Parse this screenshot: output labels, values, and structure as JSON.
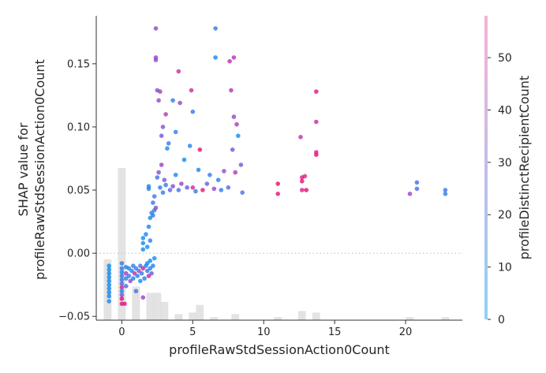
{
  "chart_data": {
    "type": "scatter",
    "xlabel": "profileRawStdSessionAction0Count",
    "ylabel_lines": [
      "SHAP value for",
      "profileRawStdSessionAction0Count"
    ],
    "colorbar_label": "profileDistinctRecipientCount",
    "xlim": [
      -1.8,
      24.0
    ],
    "ylim": [
      -0.053,
      0.188
    ],
    "x_ticks": [
      0,
      5,
      10,
      15,
      20
    ],
    "x_tick_labels": [
      "0",
      "5",
      "10",
      "15",
      "20"
    ],
    "y_ticks": [
      -0.05,
      0.0,
      0.05,
      0.1,
      0.15
    ],
    "y_tick_labels": [
      "−0.05",
      "0.00",
      "0.05",
      "0.10",
      "0.15"
    ],
    "zero_line": true,
    "colorbar": {
      "range": [
        0,
        58
      ],
      "ticks": [
        0,
        10,
        20,
        30,
        40,
        50
      ],
      "tick_labels": [
        "0",
        "10",
        "20",
        "30",
        "40",
        "50"
      ],
      "colors": [
        "#8fd3f4",
        "#c4bde8",
        "#f6b2d6"
      ]
    },
    "histogram": {
      "bins": [
        -1,
        0,
        1,
        2,
        2.5,
        3,
        4,
        5,
        5.5,
        6.5,
        8,
        11,
        12.7,
        13.7,
        20.3,
        22.8
      ],
      "heights": [
        0.4,
        1.0,
        0.22,
        0.18,
        0.18,
        0.12,
        0.04,
        0.05,
        0.1,
        0.02,
        0.04,
        0.02,
        0.06,
        0.05,
        0.02,
        0.02
      ]
    },
    "points": [
      {
        "x": -0.9,
        "y": -0.01,
        "c": 2
      },
      {
        "x": -0.9,
        "y": -0.013,
        "c": 1
      },
      {
        "x": -0.9,
        "y": -0.016,
        "c": 3
      },
      {
        "x": -0.9,
        "y": -0.019,
        "c": 2
      },
      {
        "x": -0.9,
        "y": -0.022,
        "c": 4
      },
      {
        "x": -0.9,
        "y": -0.025,
        "c": 1
      },
      {
        "x": -0.9,
        "y": -0.028,
        "c": 2
      },
      {
        "x": -0.9,
        "y": -0.031,
        "c": 3
      },
      {
        "x": -0.9,
        "y": -0.034,
        "c": 2
      },
      {
        "x": -0.9,
        "y": -0.038,
        "c": 5
      },
      {
        "x": 0.0,
        "y": -0.008,
        "c": 10
      },
      {
        "x": 0.0,
        "y": -0.012,
        "c": 12
      },
      {
        "x": 0.0,
        "y": -0.015,
        "c": 5
      },
      {
        "x": 0.0,
        "y": -0.018,
        "c": 14
      },
      {
        "x": 0.0,
        "y": -0.021,
        "c": 8
      },
      {
        "x": 0.0,
        "y": -0.024,
        "c": 18
      },
      {
        "x": 0.0,
        "y": -0.027,
        "c": 45
      },
      {
        "x": 0.0,
        "y": -0.03,
        "c": 3
      },
      {
        "x": 0.0,
        "y": -0.033,
        "c": 22
      },
      {
        "x": 0.0,
        "y": -0.036,
        "c": 55
      },
      {
        "x": 0.0,
        "y": -0.04,
        "c": 50
      },
      {
        "x": 0.2,
        "y": -0.04,
        "c": 48
      },
      {
        "x": 0.3,
        "y": -0.011,
        "c": 7
      },
      {
        "x": 0.3,
        "y": -0.016,
        "c": 30
      },
      {
        "x": 0.3,
        "y": -0.02,
        "c": 9
      },
      {
        "x": 0.3,
        "y": -0.026,
        "c": 15
      },
      {
        "x": 0.5,
        "y": -0.012,
        "c": 6
      },
      {
        "x": 0.5,
        "y": -0.018,
        "c": 12
      },
      {
        "x": 0.6,
        "y": -0.022,
        "c": 28
      },
      {
        "x": 0.7,
        "y": -0.014,
        "c": 4
      },
      {
        "x": 0.8,
        "y": -0.01,
        "c": 10
      },
      {
        "x": 0.8,
        "y": -0.02,
        "c": 6
      },
      {
        "x": 0.9,
        "y": -0.016,
        "c": 42
      },
      {
        "x": 1.0,
        "y": -0.012,
        "c": 8
      },
      {
        "x": 1.0,
        "y": -0.03,
        "c": 16
      },
      {
        "x": 1.1,
        "y": -0.018,
        "c": 5
      },
      {
        "x": 1.2,
        "y": -0.014,
        "c": 26
      },
      {
        "x": 1.3,
        "y": -0.01,
        "c": 9
      },
      {
        "x": 1.3,
        "y": -0.022,
        "c": 3
      },
      {
        "x": 1.4,
        "y": -0.016,
        "c": 12
      },
      {
        "x": 1.5,
        "y": -0.012,
        "c": 50
      },
      {
        "x": 1.5,
        "y": -0.035,
        "c": 30
      },
      {
        "x": 1.6,
        "y": -0.02,
        "c": 7
      },
      {
        "x": 1.7,
        "y": -0.01,
        "c": 4
      },
      {
        "x": 1.8,
        "y": -0.014,
        "c": 11
      },
      {
        "x": 1.8,
        "y": -0.008,
        "c": 2
      },
      {
        "x": 1.9,
        "y": -0.018,
        "c": 44
      },
      {
        "x": 2.0,
        "y": -0.012,
        "c": 6
      },
      {
        "x": 2.0,
        "y": -0.006,
        "c": 1
      },
      {
        "x": 2.1,
        "y": -0.016,
        "c": 20
      },
      {
        "x": 2.2,
        "y": -0.01,
        "c": 9
      },
      {
        "x": 2.3,
        "y": -0.004,
        "c": 3
      },
      {
        "x": 1.5,
        "y": 0.003,
        "c": 2
      },
      {
        "x": 1.5,
        "y": 0.008,
        "c": 3
      },
      {
        "x": 1.5,
        "y": 0.012,
        "c": 1
      },
      {
        "x": 1.7,
        "y": 0.015,
        "c": 4
      },
      {
        "x": 1.8,
        "y": 0.005,
        "c": 2
      },
      {
        "x": 1.9,
        "y": 0.021,
        "c": 5
      },
      {
        "x": 2.0,
        "y": 0.01,
        "c": 8
      },
      {
        "x": 2.0,
        "y": 0.028,
        "c": 6
      },
      {
        "x": 2.1,
        "y": 0.032,
        "c": 3
      },
      {
        "x": 2.2,
        "y": 0.04,
        "c": 9
      },
      {
        "x": 2.2,
        "y": 0.03,
        "c": 12
      },
      {
        "x": 2.3,
        "y": 0.034,
        "c": 10
      },
      {
        "x": 2.3,
        "y": 0.045,
        "c": 14
      },
      {
        "x": 2.4,
        "y": 0.036,
        "c": 28
      },
      {
        "x": 1.9,
        "y": 0.053,
        "c": 4
      },
      {
        "x": 1.9,
        "y": 0.051,
        "c": 6
      },
      {
        "x": 2.5,
        "y": 0.06,
        "c": 15
      },
      {
        "x": 2.6,
        "y": 0.064,
        "c": 25
      },
      {
        "x": 2.7,
        "y": 0.052,
        "c": 10
      },
      {
        "x": 2.8,
        "y": 0.07,
        "c": 30
      },
      {
        "x": 2.9,
        "y": 0.048,
        "c": 8
      },
      {
        "x": 3.0,
        "y": 0.058,
        "c": 22
      },
      {
        "x": 3.1,
        "y": 0.054,
        "c": 12
      },
      {
        "x": 3.2,
        "y": 0.083,
        "c": 3
      },
      {
        "x": 3.4,
        "y": 0.05,
        "c": 18
      },
      {
        "x": 3.6,
        "y": 0.053,
        "c": 26
      },
      {
        "x": 3.8,
        "y": 0.062,
        "c": 4
      },
      {
        "x": 4.0,
        "y": 0.05,
        "c": 14
      },
      {
        "x": 4.2,
        "y": 0.055,
        "c": 32
      },
      {
        "x": 4.4,
        "y": 0.074,
        "c": 2
      },
      {
        "x": 4.6,
        "y": 0.052,
        "c": 20
      },
      {
        "x": 4.8,
        "y": 0.085,
        "c": 7
      },
      {
        "x": 5.0,
        "y": 0.052,
        "c": 40
      },
      {
        "x": 5.2,
        "y": 0.049,
        "c": 12
      },
      {
        "x": 5.4,
        "y": 0.066,
        "c": 6
      },
      {
        "x": 5.5,
        "y": 0.082,
        "c": 54
      },
      {
        "x": 5.7,
        "y": 0.05,
        "c": 50
      },
      {
        "x": 6.0,
        "y": 0.055,
        "c": 18
      },
      {
        "x": 6.2,
        "y": 0.062,
        "c": 9
      },
      {
        "x": 6.5,
        "y": 0.051,
        "c": 28
      },
      {
        "x": 6.8,
        "y": 0.058,
        "c": 4
      },
      {
        "x": 7.0,
        "y": 0.05,
        "c": 10
      },
      {
        "x": 7.2,
        "y": 0.065,
        "c": 26
      },
      {
        "x": 7.5,
        "y": 0.052,
        "c": 15
      },
      {
        "x": 7.8,
        "y": 0.082,
        "c": 22
      },
      {
        "x": 8.0,
        "y": 0.064,
        "c": 35
      },
      {
        "x": 8.2,
        "y": 0.093,
        "c": 2
      },
      {
        "x": 8.4,
        "y": 0.07,
        "c": 20
      },
      {
        "x": 8.5,
        "y": 0.048,
        "c": 14
      },
      {
        "x": 2.4,
        "y": 0.178,
        "c": 28
      },
      {
        "x": 2.4,
        "y": 0.155,
        "c": 30
      },
      {
        "x": 2.4,
        "y": 0.153,
        "c": 26
      },
      {
        "x": 2.5,
        "y": 0.129,
        "c": 25
      },
      {
        "x": 2.6,
        "y": 0.121,
        "c": 30
      },
      {
        "x": 2.7,
        "y": 0.128,
        "c": 32
      },
      {
        "x": 2.8,
        "y": 0.093,
        "c": 22
      },
      {
        "x": 2.9,
        "y": 0.1,
        "c": 26
      },
      {
        "x": 3.1,
        "y": 0.11,
        "c": 34
      },
      {
        "x": 3.3,
        "y": 0.087,
        "c": 12
      },
      {
        "x": 3.6,
        "y": 0.121,
        "c": 10
      },
      {
        "x": 3.8,
        "y": 0.096,
        "c": 5
      },
      {
        "x": 4.0,
        "y": 0.144,
        "c": 40
      },
      {
        "x": 4.1,
        "y": 0.119,
        "c": 30
      },
      {
        "x": 4.9,
        "y": 0.129,
        "c": 42
      },
      {
        "x": 5.0,
        "y": 0.112,
        "c": 8
      },
      {
        "x": 6.6,
        "y": 0.178,
        "c": 8
      },
      {
        "x": 6.6,
        "y": 0.155,
        "c": 4
      },
      {
        "x": 7.6,
        "y": 0.152,
        "c": 38
      },
      {
        "x": 7.9,
        "y": 0.155,
        "c": 34
      },
      {
        "x": 7.7,
        "y": 0.129,
        "c": 36
      },
      {
        "x": 7.9,
        "y": 0.108,
        "c": 28
      },
      {
        "x": 8.1,
        "y": 0.102,
        "c": 32
      },
      {
        "x": 11.0,
        "y": 0.055,
        "c": 55
      },
      {
        "x": 11.0,
        "y": 0.047,
        "c": 52
      },
      {
        "x": 12.7,
        "y": 0.06,
        "c": 50
      },
      {
        "x": 12.7,
        "y": 0.057,
        "c": 54
      },
      {
        "x": 12.7,
        "y": 0.05,
        "c": 48
      },
      {
        "x": 12.9,
        "y": 0.061,
        "c": 46
      },
      {
        "x": 13.0,
        "y": 0.05,
        "c": 56
      },
      {
        "x": 12.6,
        "y": 0.092,
        "c": 40
      },
      {
        "x": 13.7,
        "y": 0.078,
        "c": 55
      },
      {
        "x": 13.7,
        "y": 0.08,
        "c": 45
      },
      {
        "x": 13.7,
        "y": 0.104,
        "c": 42
      },
      {
        "x": 13.7,
        "y": 0.128,
        "c": 52
      },
      {
        "x": 20.3,
        "y": 0.047,
        "c": 28
      },
      {
        "x": 20.8,
        "y": 0.056,
        "c": 14
      },
      {
        "x": 20.8,
        "y": 0.051,
        "c": 16
      },
      {
        "x": 22.8,
        "y": 0.05,
        "c": 12
      },
      {
        "x": 22.8,
        "y": 0.047,
        "c": 10
      }
    ]
  }
}
